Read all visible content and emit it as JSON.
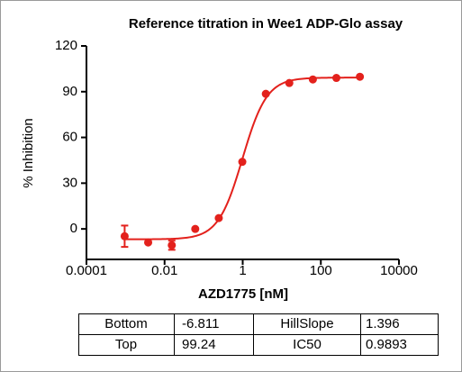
{
  "chart_data": {
    "type": "scatter",
    "title": "Reference titration in Wee1 ADP-Glo assay",
    "x_label": "AZD1775 [nM]",
    "y_label": "% Inhibition",
    "x": [
      0.00095,
      0.0038,
      0.0153,
      0.061,
      0.244,
      0.977,
      3.91,
      15.6,
      62.5,
      250,
      1000
    ],
    "values": [
      -4.8,
      -8.9,
      -10.7,
      0,
      7.1,
      44,
      88.6,
      95.7,
      98,
      99,
      99.8
    ],
    "errors": [
      7,
      null,
      3,
      null,
      null,
      null,
      null,
      null,
      null,
      null,
      null
    ],
    "color": "#e3211c",
    "x_scale": "log",
    "xlim": [
      0.0001,
      10000
    ],
    "xticks": [
      0.0001,
      0.01,
      1,
      100,
      10000
    ],
    "ylim": [
      -20,
      120
    ],
    "yticks": [
      0,
      30,
      60,
      90,
      120
    ]
  },
  "table": {
    "rows": [
      [
        "Bottom",
        -6.811,
        "HillSlope",
        1.396
      ],
      [
        "Top",
        99.24,
        "IC50",
        0.9893
      ]
    ]
  }
}
